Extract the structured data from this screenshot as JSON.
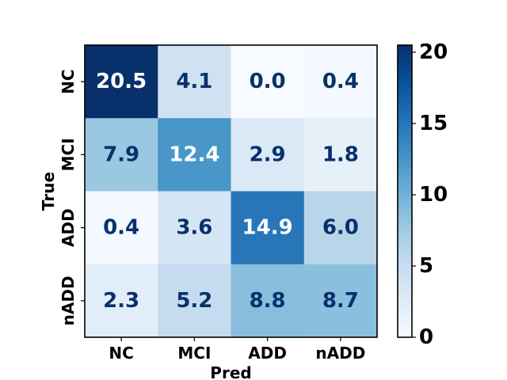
{
  "chart_data": {
    "type": "heatmap",
    "title": "",
    "xlabel": "Pred",
    "ylabel": "True",
    "x_categories": [
      "NC",
      "MCI",
      "ADD",
      "nADD"
    ],
    "y_categories": [
      "NC",
      "MCI",
      "ADD",
      "nADD"
    ],
    "values": [
      [
        20.5,
        4.1,
        0.0,
        0.4
      ],
      [
        7.9,
        12.4,
        2.9,
        1.8
      ],
      [
        0.4,
        3.6,
        14.9,
        6.0
      ],
      [
        2.3,
        5.2,
        8.8,
        8.7
      ]
    ],
    "value_labels": [
      [
        "20.5",
        "4.1",
        "0.0",
        "0.4"
      ],
      [
        "7.9",
        "12.4",
        "2.9",
        "1.8"
      ],
      [
        "0.4",
        "3.6",
        "14.9",
        "6.0"
      ],
      [
        "2.3",
        "5.2",
        "8.8",
        "8.7"
      ]
    ],
    "colormap": "Blues",
    "colorbar": {
      "range": [
        0,
        20.5
      ],
      "ticks": [
        0,
        5,
        10,
        15,
        20
      ],
      "tick_labels": [
        "0",
        "5",
        "10",
        "15",
        "20"
      ]
    },
    "text_colors": {
      "dark_cell": "#ffffff",
      "light_cell": "#08306b"
    }
  }
}
